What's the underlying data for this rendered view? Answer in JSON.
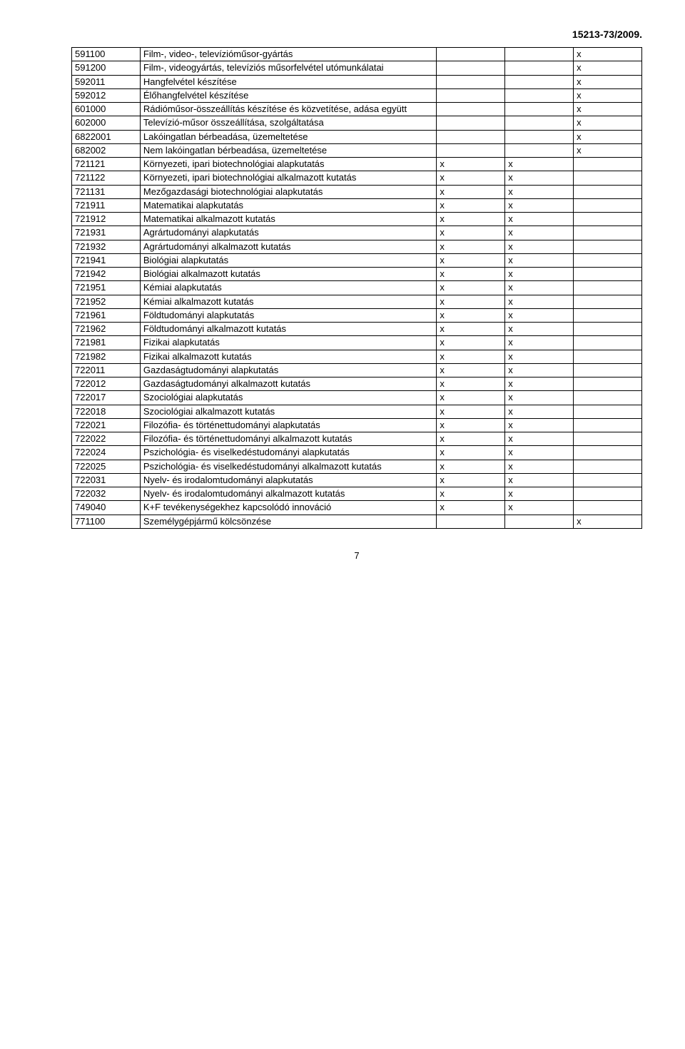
{
  "caseNumber": "15213-73/2009.",
  "pageNumber": "7",
  "table": {
    "rows": [
      {
        "code": "591100",
        "desc": "Film-, video-, televízióműsor-gyártás",
        "c3": "",
        "c4": "",
        "c5": "x"
      },
      {
        "code": "591200",
        "desc": "Film-, videogyártás, televíziós műsorfelvétel utómunkálatai",
        "c3": "",
        "c4": "",
        "c5": "x"
      },
      {
        "code": "592011",
        "desc": "Hangfelvétel készítése",
        "c3": "",
        "c4": "",
        "c5": "x"
      },
      {
        "code": "592012",
        "desc": "Élőhangfelvétel készítése",
        "c3": "",
        "c4": "",
        "c5": "x"
      },
      {
        "code": "601000",
        "desc": "Rádióműsor-összeállítás készítése és közvetítése, adása együtt",
        "c3": "",
        "c4": "",
        "c5": "x"
      },
      {
        "code": "602000",
        "desc": "Televízió-műsor összeállítása, szolgáltatása",
        "c3": "",
        "c4": "",
        "c5": "x"
      },
      {
        "code": "6822001",
        "desc": "Lakóingatlan bérbeadása, üzemeltetése",
        "c3": "",
        "c4": "",
        "c5": "x"
      },
      {
        "code": "682002",
        "desc": "Nem lakóingatlan bérbeadása, üzemeltetése",
        "c3": "",
        "c4": "",
        "c5": "x"
      },
      {
        "code": "721121",
        "desc": "Környezeti, ipari biotechnológiai alapkutatás",
        "c3": "x",
        "c4": "x",
        "c5": ""
      },
      {
        "code": "721122",
        "desc": "Környezeti, ipari biotechnológiai alkalmazott kutatás",
        "c3": "x",
        "c4": "x",
        "c5": ""
      },
      {
        "code": "721131",
        "desc": "Mezőgazdasági biotechnológiai alapkutatás",
        "c3": "x",
        "c4": "x",
        "c5": ""
      },
      {
        "code": "721911",
        "desc": "Matematikai alapkutatás",
        "c3": "x",
        "c4": "x",
        "c5": ""
      },
      {
        "code": "721912",
        "desc": "Matematikai alkalmazott kutatás",
        "c3": "x",
        "c4": "x",
        "c5": ""
      },
      {
        "code": "721931",
        "desc": "Agrártudományi alapkutatás",
        "c3": "x",
        "c4": "x",
        "c5": ""
      },
      {
        "code": "721932",
        "desc": "Agrártudományi alkalmazott kutatás",
        "c3": "x",
        "c4": "x",
        "c5": ""
      },
      {
        "code": "721941",
        "desc": "Biológiai alapkutatás",
        "c3": "x",
        "c4": "x",
        "c5": ""
      },
      {
        "code": "721942",
        "desc": "Biológiai alkalmazott kutatás",
        "c3": "x",
        "c4": "x",
        "c5": ""
      },
      {
        "code": "721951",
        "desc": "Kémiai alapkutatás",
        "c3": "x",
        "c4": "x",
        "c5": ""
      },
      {
        "code": "721952",
        "desc": "Kémiai alkalmazott kutatás",
        "c3": "x",
        "c4": "x",
        "c5": ""
      },
      {
        "code": "721961",
        "desc": "Földtudományi alapkutatás",
        "c3": "x",
        "c4": "x",
        "c5": ""
      },
      {
        "code": "721962",
        "desc": "Földtudományi alkalmazott kutatás",
        "c3": "x",
        "c4": "x",
        "c5": ""
      },
      {
        "code": "721981",
        "desc": "Fizikai alapkutatás",
        "c3": "x",
        "c4": "x",
        "c5": ""
      },
      {
        "code": "721982",
        "desc": "Fizikai alkalmazott kutatás",
        "c3": "x",
        "c4": "x",
        "c5": ""
      },
      {
        "code": "722011",
        "desc": "Gazdaságtudományi alapkutatás",
        "c3": "x",
        "c4": "x",
        "c5": ""
      },
      {
        "code": "722012",
        "desc": "Gazdaságtudományi alkalmazott kutatás",
        "c3": "x",
        "c4": "x",
        "c5": ""
      },
      {
        "code": "722017",
        "desc": "Szociológiai alapkutatás",
        "c3": "x",
        "c4": "x",
        "c5": ""
      },
      {
        "code": "722018",
        "desc": "Szociológiai alkalmazott kutatás",
        "c3": "x",
        "c4": "x",
        "c5": ""
      },
      {
        "code": "722021",
        "desc": "Filozófia- és történettudományi alapkutatás",
        "c3": "x",
        "c4": "x",
        "c5": ""
      },
      {
        "code": "722022",
        "desc": "Filozófia- és történettudományi alkalmazott kutatás",
        "c3": "x",
        "c4": "x",
        "c5": ""
      },
      {
        "code": "722024",
        "desc": "Pszichológia- és viselkedéstudományi alapkutatás",
        "c3": "x",
        "c4": "x",
        "c5": ""
      },
      {
        "code": "722025",
        "desc": "Pszichológia- és viselkedéstudományi alkalmazott kutatás",
        "c3": "x",
        "c4": "x",
        "c5": ""
      },
      {
        "code": "722031",
        "desc": "Nyelv- és irodalomtudományi alapkutatás",
        "c3": "x",
        "c4": "x",
        "c5": ""
      },
      {
        "code": "722032",
        "desc": "Nyelv- és irodalomtudományi alkalmazott kutatás",
        "c3": "x",
        "c4": "x",
        "c5": ""
      },
      {
        "code": "749040",
        "desc": "K+F tevékenységekhez kapcsolódó innováció",
        "c3": "x",
        "c4": "x",
        "c5": ""
      },
      {
        "code": "771100",
        "desc": "Személygépjármű kölcsönzése",
        "c3": "",
        "c4": "",
        "c5": "x"
      }
    ]
  }
}
